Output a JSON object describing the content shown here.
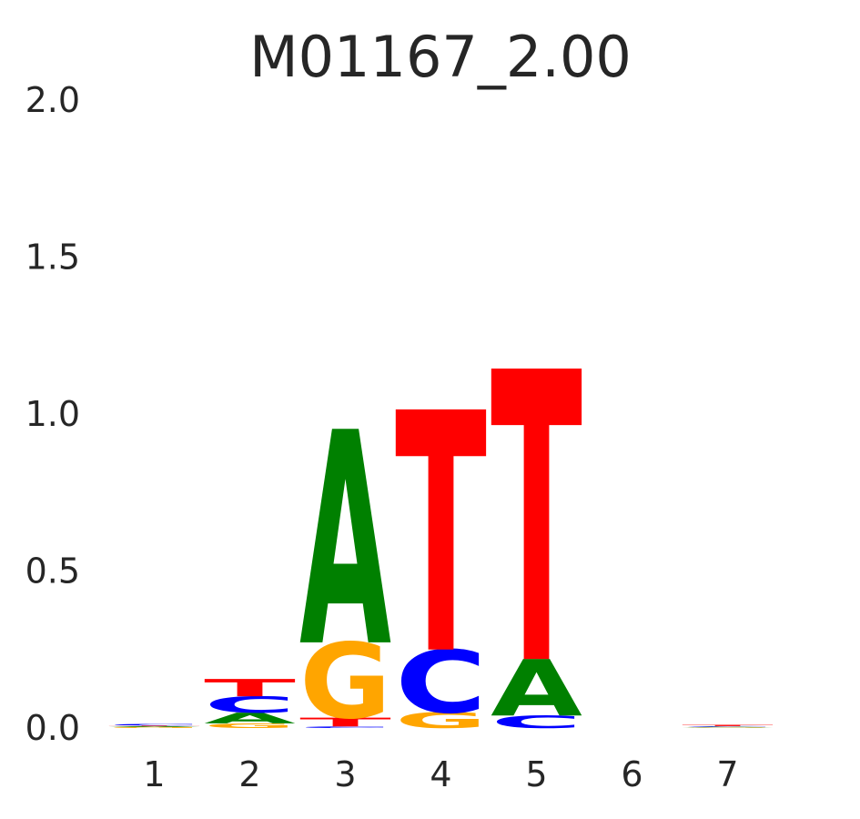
{
  "chart_data": {
    "type": "sequence-logo",
    "title": "M01167_2.00",
    "xlabel": "",
    "ylabel": "",
    "ylim": [
      0,
      2.0
    ],
    "y_ticks": [
      "0.0",
      "0.5",
      "1.0",
      "1.5",
      "2.0"
    ],
    "y_tick_values": [
      0,
      0.5,
      1.0,
      1.5,
      2.0
    ],
    "x_ticks": [
      "1",
      "2",
      "3",
      "4",
      "5",
      "6",
      "7"
    ],
    "grid": false,
    "letter_colors": {
      "A": "#008000",
      "C": "#0000ff",
      "G": "#ffa500",
      "T": "#ff0000"
    },
    "positions": [
      {
        "position": "1",
        "stack": [
          {
            "base": "G",
            "height": 0.003
          },
          {
            "base": "A",
            "height": 0.003
          },
          {
            "base": "T",
            "height": 0.002
          },
          {
            "base": "C",
            "height": 0.005
          }
        ]
      },
      {
        "position": "2",
        "stack": [
          {
            "base": "G",
            "height": 0.015
          },
          {
            "base": "A",
            "height": 0.034
          },
          {
            "base": "C",
            "height": 0.052
          },
          {
            "base": "T",
            "height": 0.055
          }
        ]
      },
      {
        "position": "3",
        "stack": [
          {
            "base": "C",
            "height": 0.005
          },
          {
            "base": "T",
            "height": 0.028
          },
          {
            "base": "G",
            "height": 0.24
          },
          {
            "base": "A",
            "height": 0.68
          }
        ]
      },
      {
        "position": "4",
        "stack": [
          {
            "base": "G",
            "height": 0.05
          },
          {
            "base": "C",
            "height": 0.2
          },
          {
            "base": "T",
            "height": 0.765
          }
        ]
      },
      {
        "position": "5",
        "stack": [
          {
            "base": "C",
            "height": 0.04
          },
          {
            "base": "A",
            "height": 0.18
          },
          {
            "base": "T",
            "height": 0.925
          }
        ]
      },
      {
        "position": "6",
        "stack": []
      },
      {
        "position": "7",
        "stack": [
          {
            "base": "G",
            "height": 0.002
          },
          {
            "base": "A",
            "height": 0.002
          },
          {
            "base": "C",
            "height": 0.002
          },
          {
            "base": "T",
            "height": 0.004
          }
        ]
      }
    ]
  }
}
